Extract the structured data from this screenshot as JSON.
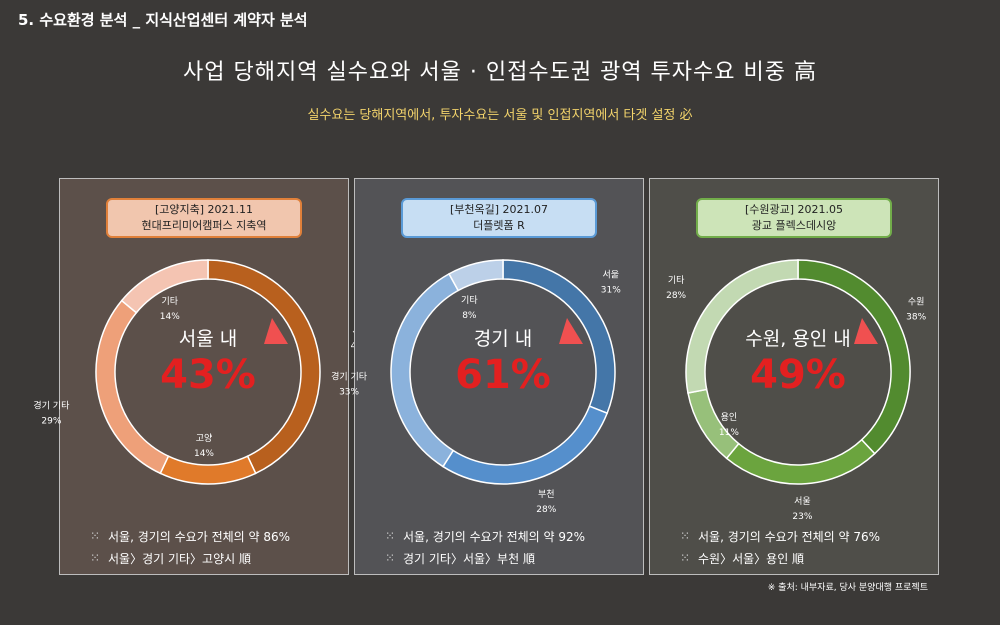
{
  "section_title": "5. 수요환경 분석 _ 지식산업센터 계약자 분석",
  "headline": "사업 당해지역 실수요와 서울 · 인접수도권 광역 투자수요 비중 高",
  "subline": "실수요는 당해지역에서, 투자수요는 서울 및 인접지역에서 타겟 설정 必",
  "source": "※ 출처: 내부자료, 당사 분양대행 프로젝트",
  "colors": {
    "highlight": "#e32020",
    "pointer": "#f05050"
  },
  "panels": [
    {
      "label_line1": "[고양지축] 2021.11",
      "label_line2": "현대프리미어캠퍼스 지축역",
      "center_label": "서울 내",
      "center_value": "43%",
      "bullet1": "서울, 경기의 수요가 전체의 약 86%",
      "bullet2": "서울〉경기 기타〉고양시 順"
    },
    {
      "label_line1": "[부천옥길] 2021.07",
      "label_line2": "더플렛폼 R",
      "center_label": "경기 내",
      "center_value": "61%",
      "bullet1": "서울, 경기의 수요가 전체의 약 92%",
      "bullet2": "경기 기타〉서울〉부천 順"
    },
    {
      "label_line1": "[수원광교] 2021.05",
      "label_line2": "광교 플렉스데시앙",
      "center_label": "수원, 용인  내",
      "center_value": "49%",
      "bullet1": "서울, 경기의 수요가 전체의 약 76%",
      "bullet2": "수원〉서울〉용인 順"
    }
  ],
  "chart_data": [
    {
      "type": "pie",
      "title": "[고양지축] 2021.11 현대프리미어캠퍼스 지축역",
      "categories": [
        "서울",
        "고양",
        "경기 기타",
        "기타"
      ],
      "values": [
        43,
        14,
        29,
        14
      ],
      "value_labels": [
        "43%",
        "14%",
        "29%",
        "14%"
      ],
      "colors": [
        "#b8601e",
        "#e07a2a",
        "#eea079",
        "#f4c4b2"
      ]
    },
    {
      "type": "pie",
      "title": "[부천옥길] 2021.07 더플렛폼 R",
      "categories": [
        "서울",
        "부천",
        "경기 기타",
        "기타"
      ],
      "values": [
        31,
        28,
        33,
        8
      ],
      "value_labels": [
        "31%",
        "28%",
        "33%",
        "8%"
      ],
      "colors": [
        "#4476a8",
        "#558fcc",
        "#8bb2dc",
        "#bcd0e8"
      ]
    },
    {
      "type": "pie",
      "title": "[수원광교] 2021.05 광교 플렉스데시앙",
      "categories": [
        "수원",
        "서울",
        "용인",
        "기타"
      ],
      "values": [
        38,
        23,
        11,
        28
      ],
      "value_labels": [
        "38%",
        "23%",
        "11%",
        "28%"
      ],
      "colors": [
        "#528b2f",
        "#6ba43e",
        "#97c07a",
        "#c2d9b2"
      ]
    }
  ]
}
